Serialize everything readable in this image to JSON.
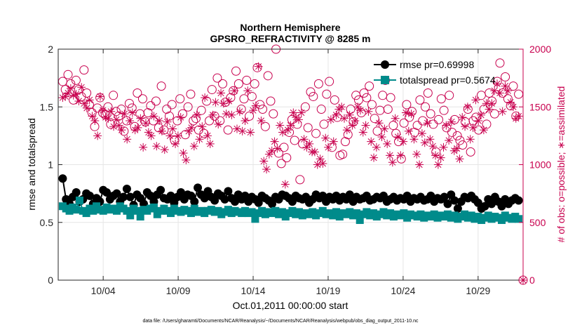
{
  "chart_data": {
    "type": "line",
    "title": "Northern Hemisphere",
    "subtitle": "GPSRO_REFRACTIVITY @ 8285 m",
    "xlabel": "Oct.01,2011 00:00:00 start",
    "ylabel": "rmse and totalspread",
    "ylabel_right": "# of obs: o=possible; ∗=assimilated",
    "footnote": "data file: /Users/gharamti/Documents/NCAR/Reanalysis/~/Documents/NCAR/Reanalysis/webpub/obs_diag_output_2011-10.nc",
    "x_ticks": [
      "10/04",
      "10/09",
      "10/14",
      "10/19",
      "10/24",
      "10/29"
    ],
    "x_tick_days": [
      3,
      8,
      13,
      18,
      23,
      28
    ],
    "xlim": [
      0,
      31
    ],
    "ylim": [
      0,
      2
    ],
    "y_ticks": [
      "0",
      "0.5",
      "1",
      "1.5",
      "2"
    ],
    "ylim_right": [
      0,
      2000
    ],
    "y_ticks_right": [
      "0",
      "500",
      "1000",
      "1500",
      "2000"
    ],
    "legend_position": "top-right",
    "grid": true,
    "series": [
      {
        "name": "rmse pr=0.69998",
        "legend_label": "rmse pr=0.69998",
        "color": "#000000",
        "marker": "circle",
        "axis": "left",
        "values": [
          0.88,
          0.7,
          0.66,
          0.72,
          0.76,
          0.68,
          0.7,
          0.75,
          0.73,
          0.66,
          0.71,
          0.68,
          0.78,
          0.76,
          0.7,
          0.73,
          0.75,
          0.68,
          0.72,
          0.79,
          0.72,
          0.65,
          0.74,
          0.71,
          0.66,
          0.76,
          0.73,
          0.68,
          0.74,
          0.78,
          0.71,
          0.7,
          0.73,
          0.67,
          0.72,
          0.76,
          0.7,
          0.74,
          0.73,
          0.68,
          0.8,
          0.74,
          0.71,
          0.77,
          0.72,
          0.69,
          0.75,
          0.73,
          0.7,
          0.77,
          0.71,
          0.68,
          0.74,
          0.7,
          0.73,
          0.68,
          0.72,
          0.7,
          0.67,
          0.73,
          0.71,
          0.69,
          0.66,
          0.72,
          0.7,
          0.74,
          0.73,
          0.71,
          0.68,
          0.73,
          0.71,
          0.7,
          0.72,
          0.67,
          0.7,
          0.74,
          0.71,
          0.73,
          0.68,
          0.72,
          0.7,
          0.73,
          0.69,
          0.72,
          0.7,
          0.74,
          0.68,
          0.72,
          0.7,
          0.71,
          0.73,
          0.69,
          0.7,
          0.72,
          0.71,
          0.73,
          0.68,
          0.7,
          0.72,
          0.69,
          0.71,
          0.7,
          0.73,
          0.68,
          0.71,
          0.7,
          0.72,
          0.69,
          0.7,
          0.73,
          0.68,
          0.71,
          0.7,
          0.72,
          0.66,
          0.74,
          0.69,
          0.62,
          0.68,
          0.72,
          0.71,
          0.73,
          0.7,
          0.67,
          0.62,
          0.64,
          0.7,
          0.66,
          0.72,
          0.68,
          0.64,
          0.7,
          0.66,
          0.69,
          0.71,
          0.69
        ]
      },
      {
        "name": "totalspread pr=0.5674",
        "legend_label": "totalspread pr=0.5674",
        "color": "#008b8b",
        "marker": "square",
        "axis": "left",
        "values": [
          0.64,
          0.62,
          0.6,
          0.63,
          0.61,
          0.69,
          0.6,
          0.58,
          0.62,
          0.6,
          0.64,
          0.61,
          0.6,
          0.63,
          0.61,
          0.62,
          0.6,
          0.64,
          0.62,
          0.6,
          0.56,
          0.62,
          0.6,
          0.55,
          0.61,
          0.6,
          0.62,
          0.63,
          0.57,
          0.6,
          0.62,
          0.6,
          0.58,
          0.62,
          0.6,
          0.59,
          0.61,
          0.6,
          0.58,
          0.62,
          0.59,
          0.6,
          0.58,
          0.6,
          0.61,
          0.59,
          0.6,
          0.57,
          0.59,
          0.61,
          0.58,
          0.6,
          0.59,
          0.58,
          0.6,
          0.58,
          0.59,
          0.53,
          0.58,
          0.6,
          0.57,
          0.59,
          0.58,
          0.6,
          0.57,
          0.59,
          0.55,
          0.58,
          0.6,
          0.57,
          0.59,
          0.56,
          0.58,
          0.57,
          0.59,
          0.56,
          0.58,
          0.6,
          0.57,
          0.58,
          0.56,
          0.59,
          0.55,
          0.58,
          0.57,
          0.59,
          0.56,
          0.58,
          0.52,
          0.57,
          0.59,
          0.56,
          0.58,
          0.55,
          0.57,
          0.59,
          0.56,
          0.58,
          0.55,
          0.57,
          0.56,
          0.58,
          0.54,
          0.57,
          0.56,
          0.55,
          0.57,
          0.54,
          0.56,
          0.55,
          0.57,
          0.54,
          0.56,
          0.55,
          0.57,
          0.54,
          0.56,
          0.53,
          0.55,
          0.57,
          0.54,
          0.56,
          0.53,
          0.55,
          0.52,
          0.54,
          0.56,
          0.53,
          0.55,
          0.54,
          0.52,
          0.56,
          0.54,
          0.53,
          0.55,
          0.53
        ]
      },
      {
        "name": "possible",
        "color": "#c8004e",
        "marker": "open-circle",
        "axis": "right",
        "values": [
          1720,
          1650,
          1780,
          1700,
          1560,
          1730,
          1650,
          1590,
          1820,
          1620,
          1520,
          1450,
          1330,
          1490,
          1580,
          1450,
          1430,
          1500,
          1350,
          1600,
          1460,
          1420,
          1480,
          1290,
          1380,
          1530,
          1490,
          1330,
          1620,
          1440,
          1570,
          1370,
          1450,
          1510,
          1380,
          1550,
          1320,
          1680,
          1300,
          1480,
          1420,
          1520,
          1210,
          1380,
          1570,
          1440,
          1260,
          1500,
          1610,
          1380,
          1400,
          1300,
          1470,
          1270,
          1550,
          1380,
          1650,
          1420,
          1750,
          1380,
          1700,
          1540,
          1300,
          1580,
          1640,
          1810,
          1700,
          1480,
          1570,
          1730,
          1420,
          1590,
          1700,
          1840,
          1520,
          1480,
          1330,
          1770,
          1550,
          1440,
          2000,
          1100,
          1010,
          1150,
          1060,
          1280,
          1390,
          1210,
          1350,
          870,
          1180,
          1500,
          1320,
          1630,
          1590,
          1270,
          1700,
          1480,
          1350,
          1610,
          1720,
          1150,
          1560,
          1410,
          1080,
          1090,
          1200,
          1260,
          1480,
          1370,
          1600,
          1560,
          1450,
          1620,
          1580,
          1680,
          1520,
          1400,
          1290,
          1470,
          1600,
          1730,
          1480,
          1580,
          1340,
          1270,
          1200,
          1050,
          1360,
          1520,
          1410,
          1460,
          1280,
          1340,
          1560,
          1380,
          1500,
          1620,
          1440,
          1350,
          1110,
          1390,
          1570,
          1470,
          1320,
          1600,
          1280,
          1390,
          1250,
          1210,
          1170,
          1370,
          1480,
          1110,
          1380,
          1410,
          1300,
          1600,
          1480,
          1350,
          1620,
          1550,
          1440,
          1720,
          1880,
          1620,
          1760,
          1570,
          1510,
          1680,
          1420,
          1610
        ]
      },
      {
        "name": "assimilated",
        "color": "#c8004e",
        "marker": "asterisk",
        "axis": "right",
        "values": [
          1580,
          1590,
          1620,
          1660,
          1600,
          1610,
          1550,
          1670,
          1530,
          1490,
          1560,
          1420,
          1380,
          1250,
          1590,
          1470,
          1410,
          1400,
          1460,
          1330,
          1390,
          1340,
          1300,
          1440,
          1220,
          1380,
          1450,
          1300,
          1320,
          1400,
          1150,
          1360,
          1280,
          1250,
          1420,
          1160,
          1380,
          1290,
          1130,
          1370,
          1250,
          1310,
          1180,
          1250,
          1410,
          1100,
          1040,
          1290,
          1320,
          1160,
          1430,
          1220,
          1330,
          1580,
          1250,
          1180,
          1430,
          1540,
          1350,
          1620,
          1530,
          1440,
          1550,
          1430,
          1640,
          1310,
          1460,
          1290,
          1380,
          1640,
          1280,
          1470,
          1510,
          1850,
          1380,
          1030,
          960,
          1090,
          1120,
          1200,
          1140,
          1340,
          1280,
          830,
          1300,
          1340,
          1450,
          1410,
          1390,
          1450,
          1220,
          1150,
          1180,
          1110,
          1110,
          1000,
          1050,
          1010,
          1230,
          1150,
          1390,
          1200,
          1430,
          1480,
          1500,
          1400,
          1300,
          1430,
          1340,
          1380,
          1500,
          1470,
          1280,
          1340,
          1460,
          1200,
          1060,
          1150,
          1360,
          1240,
          1310,
          1180,
          1080,
          1020,
          1400,
          1240,
          1080,
          1200,
          1450,
          1290,
          1440,
          1220,
          1090,
          1000,
          1270,
          1190,
          1360,
          1220,
          1160,
          1080,
          1000,
          1060,
          1150,
          1340,
          1210,
          1370,
          1120,
          1140,
          1050,
          1410,
          1330,
          1500,
          1220,
          1320,
          1560,
          1380,
          1430,
          1300,
          1530,
          1480,
          1530,
          1640,
          1700,
          1620,
          1460,
          1680,
          1640,
          1540,
          1500,
          1400,
          1420
        ]
      },
      {
        "name": "possible-end",
        "color": "#c8004e",
        "marker": "open-circle-asterisk",
        "axis": "right",
        "x": [
          31
        ],
        "values": [
          0
        ]
      }
    ]
  }
}
